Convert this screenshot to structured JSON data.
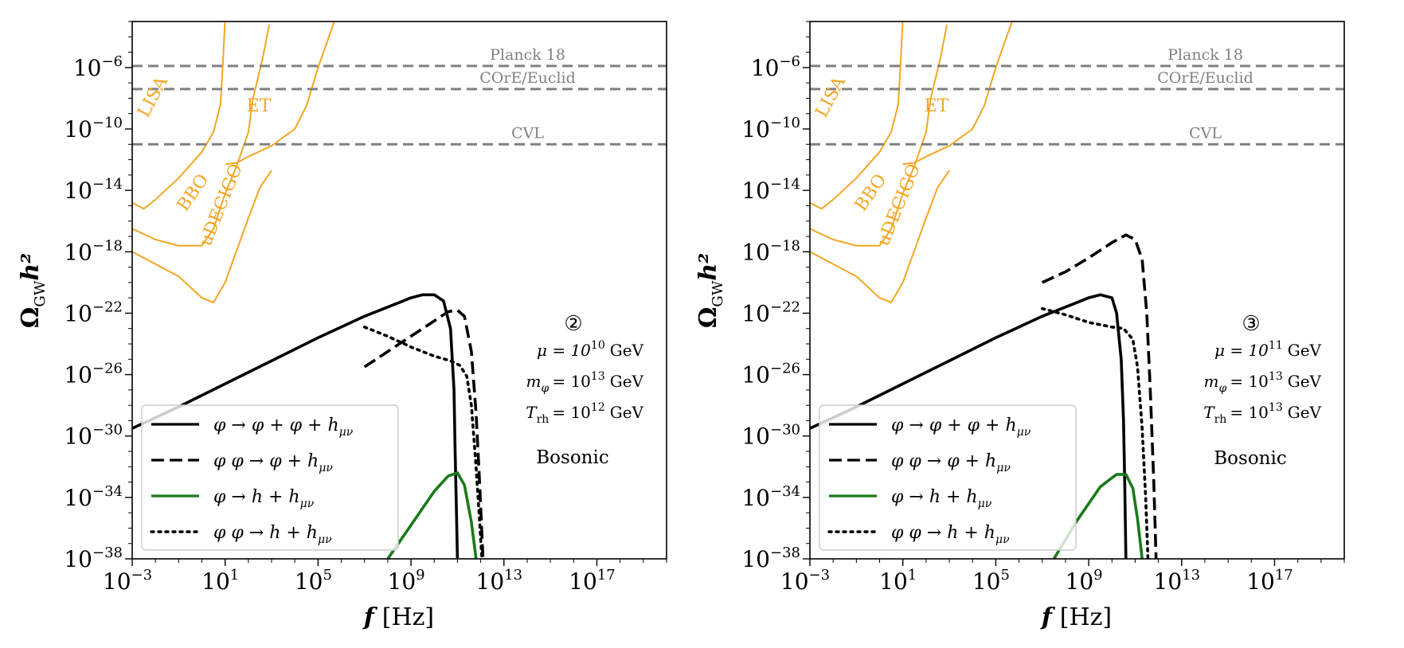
{
  "chart_data": [
    {
      "type": "line",
      "panel_id": "2",
      "xlabel_var": "f",
      "xlabel_unit": "[Hz]",
      "ylabel_main": "Ω",
      "ylabel_sub": "GW",
      "ylabel_tail": "h²",
      "x_scale": "log",
      "y_scale": "log",
      "xlim_log10": [
        -3,
        20
      ],
      "ylim_log10": [
        -38,
        -3
      ],
      "x_ticks_log10": [
        -3,
        1,
        5,
        9,
        13,
        17
      ],
      "y_ticks_log10": [
        -6,
        -10,
        -14,
        -18,
        -22,
        -26,
        -30,
        -34,
        -38
      ],
      "base_label": "10",
      "x_tick_exps": [
        "−3",
        "1",
        "5",
        "9",
        "13",
        "17"
      ],
      "y_tick_exps": [
        "−6",
        "−10",
        "−14",
        "−18",
        "−22",
        "−26",
        "−30",
        "−34",
        "−38"
      ],
      "legend": [
        {
          "name": "phi_to_two_varphi_graviton",
          "label": "φ    → φ + φ + h",
          "sub": "μν",
          "style": "solid",
          "color": "#000000"
        },
        {
          "name": "phi_varphi_to_varphi_graviton",
          "label": "φ φ → φ + h",
          "sub": "μν",
          "style": "dashed",
          "color": "#000000"
        },
        {
          "name": "phi_to_two_gravitons",
          "label": "φ    → h  + h",
          "sub": "μν",
          "style": "solid",
          "color": "#1a7a1a"
        },
        {
          "name": "phiphi_to_two_gravitons",
          "label": "φ φ → h  + h",
          "sub": "μν",
          "style": "dotted",
          "color": "#000000"
        }
      ],
      "annotations": {
        "benchmark": "②",
        "mu_label": "μ = 10",
        "mu_exp": "10",
        "mu_unit": "GeV",
        "m_label": "m",
        "m_sub": "φ",
        "m_exp": "13",
        "m_unit": "GeV",
        "t_label": "T",
        "t_sub": "rh",
        "t_exp": "12",
        "t_unit": "GeV",
        "model": "Bosonic"
      },
      "horizontal_lines": [
        {
          "label": "Planck 18",
          "y_log10": -5.9
        },
        {
          "label": "COrE/Euclid",
          "y_log10": -7.4
        },
        {
          "label": "CVL",
          "y_log10": -11.0
        }
      ],
      "sensitivity_curves": [
        {
          "label": "LISA",
          "points": [
            [
              -3,
              -14.8
            ],
            [
              -2.5,
              -15.2
            ],
            [
              -2,
              -14.6
            ],
            [
              -1,
              -13.2
            ],
            [
              0,
              -11.5
            ],
            [
              0.5,
              -10.2
            ],
            [
              0.8,
              -8.4
            ],
            [
              0.9,
              -5.8
            ],
            [
              1.0,
              -2.8
            ]
          ]
        },
        {
          "label": "ET",
          "points": [
            [
              1,
              -12.3
            ],
            [
              1.5,
              -12.2
            ],
            [
              2,
              -11.8
            ],
            [
              3,
              -11.1
            ],
            [
              4,
              -10.0
            ],
            [
              4.5,
              -8.5
            ],
            [
              5,
              -6.0
            ],
            [
              5.7,
              -3.0
            ]
          ]
        },
        {
          "label": "BBO",
          "points": [
            [
              -3,
              -16.5
            ],
            [
              -2,
              -17.2
            ],
            [
              -1,
              -17.6
            ],
            [
              0,
              -17.6
            ],
            [
              0.5,
              -16.5
            ],
            [
              1,
              -14.2
            ],
            [
              1.5,
              -12.4
            ],
            [
              2,
              -10.2
            ],
            [
              2.2,
              -8.0
            ],
            [
              2.6,
              -5.5
            ],
            [
              2.9,
              -3.2
            ]
          ]
        },
        {
          "label": "uDECIGO",
          "points": [
            [
              -3,
              -18.0
            ],
            [
              -2,
              -18.8
            ],
            [
              -1,
              -19.6
            ],
            [
              0,
              -21.0
            ],
            [
              0.5,
              -21.3
            ],
            [
              1,
              -20.0
            ],
            [
              2,
              -15.8
            ],
            [
              2.5,
              -13.8
            ],
            [
              3,
              -12.7
            ]
          ]
        }
      ],
      "series": [
        {
          "name": "phi_to_two_varphi_graviton",
          "style": "solid",
          "color": "#000000",
          "points": [
            [
              -3,
              -29.5
            ],
            [
              -1,
              -28.1
            ],
            [
              1,
              -26.6
            ],
            [
              3,
              -25.1
            ],
            [
              5,
              -23.6
            ],
            [
              7,
              -22.2
            ],
            [
              8.5,
              -21.3
            ],
            [
              9,
              -21.0
            ],
            [
              9.5,
              -20.8
            ],
            [
              10,
              -20.8
            ],
            [
              10.4,
              -21.2
            ],
            [
              10.7,
              -23.0
            ],
            [
              10.85,
              -27.0
            ],
            [
              10.9,
              -31.0
            ],
            [
              10.95,
              -34.5
            ],
            [
              11.0,
              -38.0
            ]
          ]
        },
        {
          "name": "phi_varphi_to_varphi_graviton",
          "style": "dashed",
          "color": "#000000",
          "points": [
            [
              7,
              -25.5
            ],
            [
              8,
              -24.5
            ],
            [
              9,
              -23.5
            ],
            [
              10,
              -22.5
            ],
            [
              10.6,
              -21.9
            ],
            [
              11.0,
              -21.8
            ],
            [
              11.3,
              -22.2
            ],
            [
              11.6,
              -24.5
            ],
            [
              11.8,
              -28.5
            ],
            [
              11.95,
              -33.0
            ],
            [
              12.1,
              -38.0
            ]
          ]
        },
        {
          "name": "phi_to_two_gravitons",
          "style": "solid",
          "color": "#1a7a1a",
          "points": [
            [
              8.0,
              -38.0
            ],
            [
              9.0,
              -35.8
            ],
            [
              10.0,
              -33.6
            ],
            [
              10.6,
              -32.6
            ],
            [
              11.0,
              -32.4
            ],
            [
              11.3,
              -33.2
            ],
            [
              11.6,
              -35.6
            ],
            [
              11.8,
              -38.0
            ]
          ]
        },
        {
          "name": "phiphi_to_two_gravitons",
          "style": "dotted",
          "color": "#000000",
          "points": [
            [
              7,
              -22.9
            ],
            [
              8,
              -23.5
            ],
            [
              9,
              -24.2
            ],
            [
              10,
              -24.8
            ],
            [
              10.7,
              -25.1
            ],
            [
              11.1,
              -25.4
            ],
            [
              11.4,
              -26.1
            ],
            [
              11.6,
              -28.0
            ],
            [
              11.8,
              -32.0
            ],
            [
              11.95,
              -35.5
            ],
            [
              12.05,
              -38.0
            ]
          ]
        }
      ]
    },
    {
      "type": "line",
      "panel_id": "3",
      "xlabel_var": "f",
      "xlabel_unit": "[Hz]",
      "ylabel_main": "Ω",
      "ylabel_sub": "GW",
      "ylabel_tail": "h²",
      "x_scale": "log",
      "y_scale": "log",
      "xlim_log10": [
        -3,
        20
      ],
      "ylim_log10": [
        -38,
        -3
      ],
      "x_ticks_log10": [
        -3,
        1,
        5,
        9,
        13,
        17
      ],
      "y_ticks_log10": [
        -6,
        -10,
        -14,
        -18,
        -22,
        -26,
        -30,
        -34,
        -38
      ],
      "base_label": "10",
      "x_tick_exps": [
        "−3",
        "1",
        "5",
        "9",
        "13",
        "17"
      ],
      "y_tick_exps": [
        "−6",
        "−10",
        "−14",
        "−18",
        "−22",
        "−26",
        "−30",
        "−34",
        "−38"
      ],
      "legend": [
        {
          "name": "phi_to_two_varphi_graviton",
          "label": "φ    → φ + φ + h",
          "sub": "μν",
          "style": "solid",
          "color": "#000000"
        },
        {
          "name": "phi_varphi_to_varphi_graviton",
          "label": "φ φ → φ + h",
          "sub": "μν",
          "style": "dashed",
          "color": "#000000"
        },
        {
          "name": "phi_to_two_gravitons",
          "label": "φ    → h  + h",
          "sub": "μν",
          "style": "solid",
          "color": "#1a7a1a"
        },
        {
          "name": "phiphi_to_two_gravitons",
          "label": "φ φ → h  + h",
          "sub": "μν",
          "style": "dotted",
          "color": "#000000"
        }
      ],
      "annotations": {
        "benchmark": "③",
        "mu_label": "μ = 10",
        "mu_exp": "11",
        "mu_unit": "GeV",
        "m_label": "m",
        "m_sub": "φ",
        "m_exp": "13",
        "m_unit": "GeV",
        "t_label": "T",
        "t_sub": "rh",
        "t_exp": "13",
        "t_unit": "GeV",
        "model": "Bosonic"
      },
      "horizontal_lines": [
        {
          "label": "Planck 18",
          "y_log10": -5.9
        },
        {
          "label": "COrE/Euclid",
          "y_log10": -7.4
        },
        {
          "label": "CVL",
          "y_log10": -11.0
        }
      ],
      "sensitivity_curves": [
        {
          "label": "LISA",
          "points": [
            [
              -3,
              -14.8
            ],
            [
              -2.5,
              -15.2
            ],
            [
              -2,
              -14.6
            ],
            [
              -1,
              -13.2
            ],
            [
              0,
              -11.5
            ],
            [
              0.5,
              -10.2
            ],
            [
              0.8,
              -8.4
            ],
            [
              0.9,
              -5.8
            ],
            [
              1.0,
              -2.8
            ]
          ]
        },
        {
          "label": "ET",
          "points": [
            [
              1,
              -12.3
            ],
            [
              1.5,
              -12.2
            ],
            [
              2,
              -11.8
            ],
            [
              3,
              -11.1
            ],
            [
              4,
              -10.0
            ],
            [
              4.5,
              -8.5
            ],
            [
              5,
              -6.0
            ],
            [
              5.7,
              -3.0
            ]
          ]
        },
        {
          "label": "BBO",
          "points": [
            [
              -3,
              -16.5
            ],
            [
              -2,
              -17.2
            ],
            [
              -1,
              -17.6
            ],
            [
              0,
              -17.6
            ],
            [
              0.5,
              -16.5
            ],
            [
              1,
              -14.2
            ],
            [
              1.5,
              -12.4
            ],
            [
              2,
              -10.2
            ],
            [
              2.2,
              -8.0
            ],
            [
              2.6,
              -5.5
            ],
            [
              2.9,
              -3.2
            ]
          ]
        },
        {
          "label": "uDECIGO",
          "points": [
            [
              -3,
              -18.0
            ],
            [
              -2,
              -18.8
            ],
            [
              -1,
              -19.6
            ],
            [
              0,
              -21.0
            ],
            [
              0.5,
              -21.3
            ],
            [
              1,
              -20.0
            ],
            [
              2,
              -15.8
            ],
            [
              2.5,
              -13.8
            ],
            [
              3,
              -12.7
            ]
          ]
        }
      ],
      "series": [
        {
          "name": "phi_to_two_varphi_graviton",
          "style": "solid",
          "color": "#000000",
          "points": [
            [
              -3,
              -29.5
            ],
            [
              -1,
              -28.1
            ],
            [
              1,
              -26.6
            ],
            [
              3,
              -25.1
            ],
            [
              5,
              -23.6
            ],
            [
              7,
              -22.2
            ],
            [
              8.5,
              -21.3
            ],
            [
              9,
              -21.0
            ],
            [
              9.5,
              -20.8
            ],
            [
              10,
              -21.0
            ],
            [
              10.2,
              -22.0
            ],
            [
              10.4,
              -25.0
            ],
            [
              10.5,
              -29.0
            ],
            [
              10.55,
              -33.0
            ],
            [
              10.6,
              -38.0
            ]
          ]
        },
        {
          "name": "phi_varphi_to_varphi_graviton",
          "style": "dashed",
          "color": "#000000",
          "points": [
            [
              7,
              -20.0
            ],
            [
              8,
              -19.3
            ],
            [
              9,
              -18.4
            ],
            [
              10,
              -17.4
            ],
            [
              10.6,
              -16.9
            ],
            [
              11.0,
              -17.2
            ],
            [
              11.3,
              -18.5
            ],
            [
              11.5,
              -22.0
            ],
            [
              11.65,
              -27.0
            ],
            [
              11.8,
              -33.0
            ],
            [
              11.9,
              -38.0
            ]
          ]
        },
        {
          "name": "phi_to_two_gravitons",
          "style": "solid",
          "color": "#1a7a1a",
          "points": [
            [
              7.5,
              -38.0
            ],
            [
              8.5,
              -35.5
            ],
            [
              9.5,
              -33.3
            ],
            [
              10.2,
              -32.5
            ],
            [
              10.6,
              -32.5
            ],
            [
              10.9,
              -33.4
            ],
            [
              11.1,
              -35.4
            ],
            [
              11.3,
              -38.0
            ]
          ]
        },
        {
          "name": "phiphi_to_two_gravitons",
          "style": "dotted",
          "color": "#000000",
          "points": [
            [
              7,
              -21.7
            ],
            [
              8,
              -22.1
            ],
            [
              9,
              -22.6
            ],
            [
              10,
              -22.9
            ],
            [
              10.5,
              -23.0
            ],
            [
              10.9,
              -23.7
            ],
            [
              11.1,
              -25.5
            ],
            [
              11.3,
              -29.5
            ],
            [
              11.45,
              -34.0
            ],
            [
              11.55,
              -38.0
            ]
          ]
        }
      ]
    }
  ]
}
